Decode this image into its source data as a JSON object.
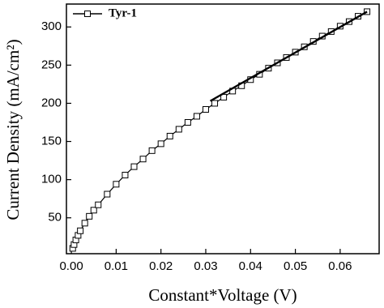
{
  "chart_data": {
    "type": "line",
    "x_label": "Constant*Voltage (V)",
    "y_label": "Current Density (mA/cm²)",
    "xlim": [
      -0.0011,
      0.0687
    ],
    "ylim": [
      3,
      330
    ],
    "xticks": [
      {
        "value": 0,
        "label": "0.00"
      },
      {
        "value": 0.01,
        "label": "0.01"
      },
      {
        "value": 0.02,
        "label": "0.02"
      },
      {
        "value": 0.03,
        "label": "0.03"
      },
      {
        "value": 0.04,
        "label": "0.04"
      },
      {
        "value": 0.05,
        "label": "0.05"
      },
      {
        "value": 0.06,
        "label": "0.06"
      }
    ],
    "yticks": [
      50,
      100,
      150,
      200,
      250,
      300
    ],
    "legend": "top-left",
    "series": [
      {
        "name": "Tyr-1",
        "color": "#000000",
        "marker": "square",
        "x": [
          0.0003,
          0.0006,
          0.001,
          0.0015,
          0.002,
          0.003,
          0.004,
          0.005,
          0.006,
          0.008,
          0.01,
          0.012,
          0.014,
          0.016,
          0.018,
          0.02,
          0.022,
          0.024,
          0.026,
          0.028,
          0.03,
          0.032,
          0.034,
          0.036,
          0.038,
          0.04,
          0.042,
          0.044,
          0.046,
          0.048,
          0.05,
          0.052,
          0.054,
          0.056,
          0.058,
          0.06,
          0.062,
          0.064,
          0.066
        ],
        "values": [
          10,
          15,
          21,
          27,
          33,
          43,
          52,
          60,
          67,
          81,
          94,
          106,
          117,
          127,
          138,
          147,
          157,
          166,
          175,
          183,
          192,
          200,
          208,
          216,
          223,
          231,
          238,
          246,
          253,
          260,
          267,
          274,
          281,
          288,
          294,
          301,
          307,
          314,
          320
        ]
      },
      {
        "color": "#000000",
        "x": [
          0.031,
          0.066
        ],
        "values": [
          203,
          320
        ]
      }
    ]
  }
}
